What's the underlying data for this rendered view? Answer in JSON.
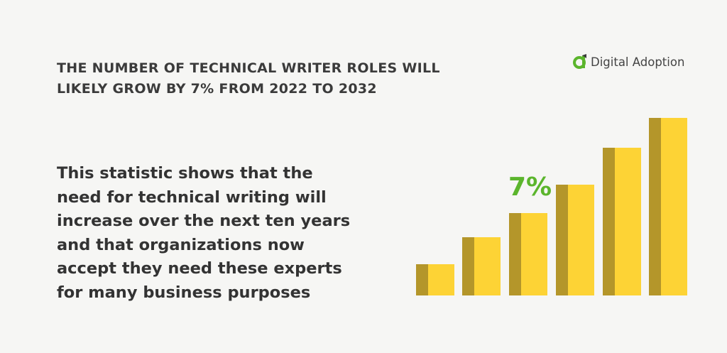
{
  "header": {
    "title_lines": [
      "THE NUMBER OF TECHNICAL WRITER ROLES WILL",
      "LIKELY GROW BY 7% FROM 2022 TO 2032"
    ]
  },
  "logo": {
    "text": "Digital Adoption"
  },
  "body": {
    "lines": [
      "This statistic shows that the",
      "need for technical writing will",
      "increase over the next ten years",
      "and that organizations now",
      "accept they need these experts",
      "for many business purposes"
    ]
  },
  "callout": {
    "text": "7%"
  }
}
